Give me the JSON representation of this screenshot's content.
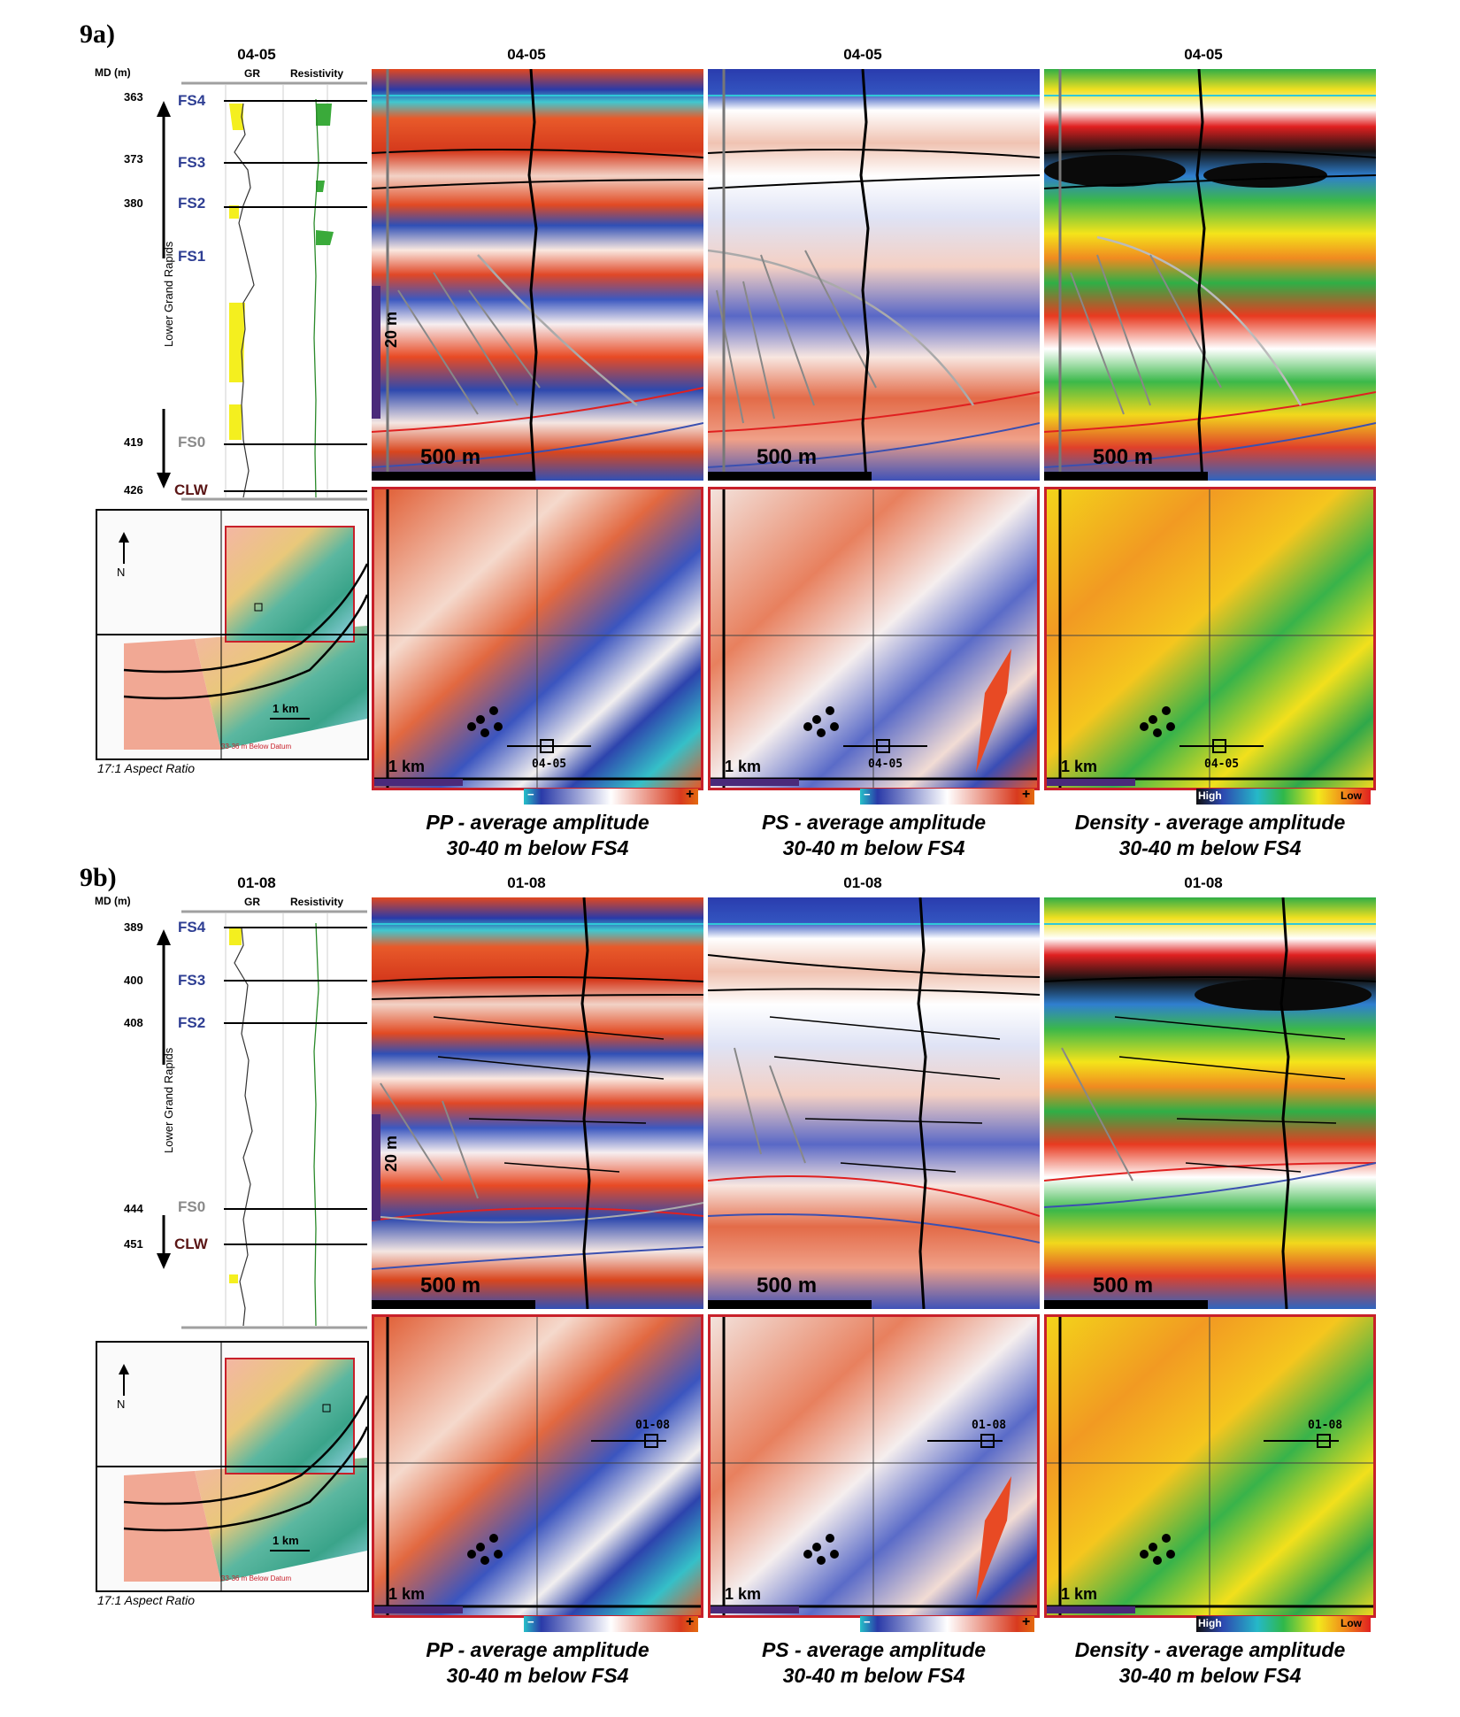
{
  "figures": [
    {
      "label": "9a)",
      "well": "04-05",
      "md_label": "MD (m)",
      "gr_label": "GR",
      "res_label": "Resistivity",
      "depths": [
        "363",
        "373",
        "380",
        "419",
        "426"
      ],
      "formation_label": "Lower Grand Rapids",
      "tops": [
        "FS4",
        "FS3",
        "FS2",
        "FS1",
        "FS0",
        "CLW"
      ],
      "scale_500": "500 m",
      "scale_20": "20 m",
      "scale_1km": "1 km",
      "scale_1km_inset": "1 km",
      "inset_note": "33-36 m Below Datum",
      "inset_north": "N",
      "aspect": "17:1 Aspect Ratio",
      "colorbar_pp": {
        "minus": "−",
        "plus": "+"
      },
      "colorbar_ps": {
        "minus": "−",
        "plus": "+"
      },
      "colorbar_den": {
        "high": "High",
        "low": "Low"
      },
      "captions": [
        {
          "line1": "PP - average amplitude",
          "line2": "30-40 m below FS4"
        },
        {
          "line1": "PS - average amplitude",
          "line2": "30-40 m below FS4"
        },
        {
          "line1": "Density - average amplitude",
          "line2": "30-40 m below FS4"
        }
      ]
    },
    {
      "label": "9b)",
      "well": "01-08",
      "md_label": "MD (m)",
      "gr_label": "GR",
      "res_label": "Resistivity",
      "depths": [
        "389",
        "400",
        "408",
        "444",
        "451"
      ],
      "formation_label": "Lower Grand Rapids",
      "tops": [
        "FS4",
        "FS3",
        "FS2",
        "FS0",
        "CLW"
      ],
      "scale_500": "500 m",
      "scale_20": "20 m",
      "scale_1km": "1 km",
      "scale_1km_inset": "1 km",
      "inset_note": "33-36 m Below Datum",
      "inset_north": "N",
      "aspect": "17:1 Aspect Ratio",
      "colorbar_pp": {
        "minus": "−",
        "plus": "+"
      },
      "colorbar_ps": {
        "minus": "−",
        "plus": "+"
      },
      "colorbar_den": {
        "high": "High",
        "low": "Low"
      },
      "captions": [
        {
          "line1": "PP - average amplitude",
          "line2": "30-40 m below FS4"
        },
        {
          "line1": "PS - average amplitude",
          "line2": "30-40 m below FS4"
        },
        {
          "line1": "Density - average amplitude",
          "line2": "30-40 m below FS4"
        }
      ]
    }
  ],
  "colors": {
    "map_border": "#c8202a",
    "top_line": "#2e3e93",
    "gr_fill": "#f4ef1f",
    "res_fill": "#3aaa3a"
  }
}
